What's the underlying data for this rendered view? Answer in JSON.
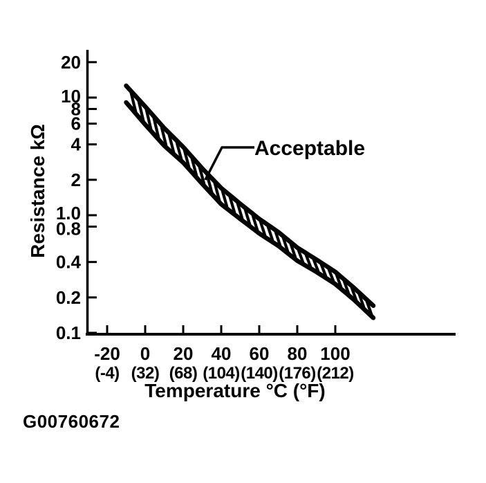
{
  "figure": {
    "id_label": "G00760672",
    "background": "#ffffff",
    "ink_color": "#000000"
  },
  "chart_data": {
    "type": "area",
    "title": "",
    "xlabel": "Temperature °C (°F)",
    "ylabel": "Resistance kΩ",
    "grid": false,
    "x_axis": {
      "scale": "linear",
      "tick_values_c": [
        -20,
        0,
        20,
        40,
        60,
        80,
        100
      ],
      "tick_labels_celsius": [
        "-20",
        "0",
        "20",
        "40",
        "60",
        "80",
        "100"
      ],
      "tick_labels_fahrenheit": [
        "(-4)",
        "(32)",
        "(68)",
        "(104)",
        "(140)",
        "(176)",
        "(212)"
      ]
    },
    "y_axis": {
      "scale": "log",
      "tick_values": [
        20,
        10,
        8,
        6,
        4,
        2,
        1.0,
        0.8,
        0.4,
        0.2,
        0.1
      ],
      "tick_labels": [
        "20",
        "10",
        "8",
        "6",
        "4",
        "2",
        "1.0",
        "0.8",
        "0.4",
        "0.2",
        "0.1"
      ],
      "range_kohm": [
        0.1,
        25
      ]
    },
    "band": {
      "label": "Acceptable",
      "hatched": true,
      "temperature_c": [
        -10,
        0,
        10,
        20,
        30,
        40,
        50,
        60,
        70,
        80,
        90,
        100,
        110,
        120
      ],
      "upper_kohm": [
        12.6,
        8.4,
        5.5,
        3.8,
        2.5,
        1.7,
        1.25,
        0.93,
        0.72,
        0.53,
        0.42,
        0.33,
        0.24,
        0.17
      ],
      "lower_kohm": [
        9.1,
        5.9,
        3.9,
        2.8,
        1.85,
        1.24,
        0.93,
        0.7,
        0.55,
        0.41,
        0.33,
        0.26,
        0.19,
        0.134
      ]
    },
    "annotation": {
      "label": "Acceptable",
      "attach_temperature_c": 31.6
    }
  }
}
